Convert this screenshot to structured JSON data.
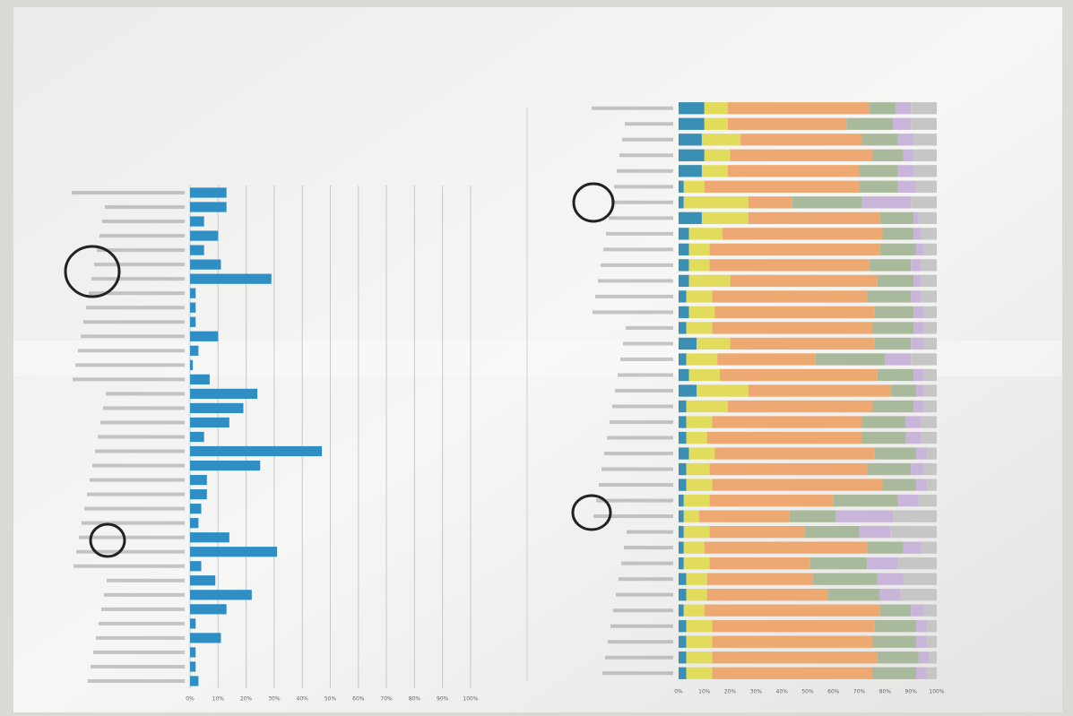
{
  "chart_data": [
    {
      "type": "bar",
      "orientation": "horizontal",
      "categories": [
        null,
        null,
        null,
        null,
        null,
        null,
        null,
        null,
        null,
        null,
        null,
        null,
        null,
        null,
        null,
        null,
        null,
        null,
        null,
        null,
        null,
        null,
        null,
        null,
        null,
        null,
        null,
        null,
        null,
        null,
        null,
        null,
        null,
        null,
        null
      ],
      "values": [
        13,
        13,
        5,
        10,
        5,
        11,
        29,
        2,
        2,
        2,
        10,
        3,
        1,
        7,
        24,
        19,
        14,
        5,
        47,
        25,
        6,
        6,
        4,
        3,
        14,
        31,
        4,
        9,
        22,
        13,
        2,
        11,
        2,
        2,
        3
      ],
      "color": "#2f8fc4",
      "xlim": [
        0,
        100
      ],
      "xticks": [
        {
          "value": 0,
          "label": "0%"
        },
        {
          "value": 10,
          "label": "10%"
        },
        {
          "value": 20,
          "label": "20%"
        },
        {
          "value": 30,
          "label": "30%"
        },
        {
          "value": 40,
          "label": "40%"
        },
        {
          "value": 50,
          "label": "50%"
        },
        {
          "value": 60,
          "label": "60%"
        },
        {
          "value": 70,
          "label": "70%"
        },
        {
          "value": 80,
          "label": "80%"
        },
        {
          "value": 90,
          "label": "90%"
        },
        {
          "value": 100,
          "label": "100%"
        }
      ],
      "grid": true
    },
    {
      "type": "stacked-bar",
      "orientation": "horizontal",
      "categories": [
        null,
        null,
        null,
        null,
        null,
        null,
        null,
        null,
        null,
        null,
        null,
        null,
        null,
        null,
        null,
        null,
        null,
        null,
        null,
        null,
        null,
        null,
        null,
        null,
        null,
        null,
        null,
        null,
        null,
        null,
        null,
        null,
        null,
        null,
        null,
        null,
        null
      ],
      "series": [
        {
          "color": "#3a8fb5",
          "values": [
            10,
            10,
            9,
            10,
            9,
            2,
            2,
            9,
            4,
            4,
            4,
            4,
            3,
            4,
            3,
            7,
            3,
            4,
            7,
            3,
            3,
            3,
            4,
            3,
            3,
            2,
            2,
            2,
            2,
            2,
            3,
            3,
            2,
            3,
            3,
            3,
            3
          ]
        },
        {
          "color": "#e2dc5c",
          "values": [
            9,
            9,
            15,
            10,
            10,
            8,
            25,
            18,
            13,
            8,
            8,
            16,
            10,
            10,
            10,
            13,
            12,
            12,
            20,
            16,
            10,
            8,
            10,
            9,
            10,
            10,
            6,
            10,
            8,
            10,
            8,
            8,
            8,
            10,
            10,
            10,
            10
          ]
        },
        {
          "color": "#eea872",
          "values": [
            55,
            46,
            47,
            55,
            51,
            60,
            17,
            51,
            62,
            66,
            62,
            57,
            60,
            62,
            62,
            56,
            38,
            61,
            55,
            56,
            58,
            60,
            62,
            61,
            66,
            48,
            35,
            37,
            63,
            39,
            41,
            47,
            68,
            63,
            62,
            64,
            62
          ]
        },
        {
          "color": "#a9b99b",
          "values": [
            10,
            18,
            14,
            12,
            15,
            15,
            27,
            13,
            12,
            14,
            16,
            14,
            17,
            15,
            16,
            14,
            27,
            14,
            10,
            16,
            17,
            17,
            16,
            17,
            13,
            25,
            18,
            21,
            14,
            22,
            25,
            20,
            12,
            16,
            17,
            16,
            17
          ]
        },
        {
          "color": "#c9b5d9",
          "values": [
            6,
            7,
            6,
            4,
            6,
            7,
            19,
            2,
            3,
            3,
            4,
            3,
            4,
            4,
            4,
            5,
            10,
            4,
            3,
            4,
            6,
            6,
            4,
            5,
            4,
            8,
            22,
            12,
            7,
            12,
            10,
            8,
            5,
            4,
            4,
            4,
            4
          ]
        },
        {
          "color": "#c6c6c6",
          "values": [
            10,
            10,
            9,
            9,
            9,
            8,
            10,
            7,
            6,
            5,
            6,
            6,
            6,
            5,
            5,
            5,
            10,
            5,
            5,
            5,
            6,
            6,
            4,
            5,
            4,
            7,
            17,
            18,
            6,
            15,
            13,
            14,
            5,
            4,
            4,
            3,
            4
          ]
        }
      ],
      "xlim": [
        0,
        100
      ],
      "xticks": [
        {
          "value": 0,
          "label": "0%"
        },
        {
          "value": 10,
          "label": "10%"
        },
        {
          "value": 20,
          "label": "20%"
        },
        {
          "value": 30,
          "label": "30%"
        },
        {
          "value": 40,
          "label": "40%"
        },
        {
          "value": 50,
          "label": "50%"
        },
        {
          "value": 60,
          "label": "60%"
        },
        {
          "value": 70,
          "label": "70%"
        },
        {
          "value": 80,
          "label": "80%"
        },
        {
          "value": 90,
          "label": "90%"
        },
        {
          "value": 100,
          "label": "100%"
        }
      ],
      "grid": false
    }
  ]
}
